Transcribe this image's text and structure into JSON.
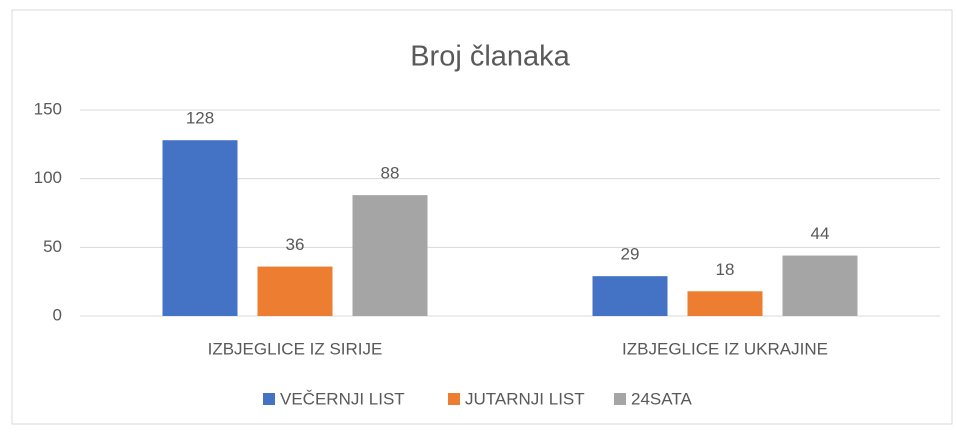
{
  "chart_data": {
    "type": "bar",
    "title": "Broj članaka",
    "categories": [
      "IZBJEGLICE IZ SIRIJE",
      "IZBJEGLICE IZ UKRAJINE"
    ],
    "series": [
      {
        "name": "VEČERNJI LIST",
        "color": "#4472c4",
        "values": [
          128,
          29
        ]
      },
      {
        "name": "JUTARNJI LIST",
        "color": "#ed7d31",
        "values": [
          36,
          18
        ]
      },
      {
        "name": "24SATA",
        "color": "#a5a5a5",
        "values": [
          88,
          44
        ]
      }
    ],
    "ylim": [
      0,
      150
    ],
    "yticks": [
      0,
      50,
      100,
      150
    ],
    "grid": true,
    "legend": "bottom"
  }
}
